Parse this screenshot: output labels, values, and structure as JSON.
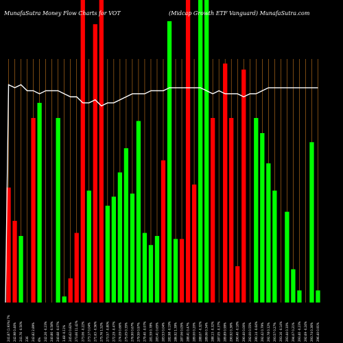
{
  "chart_data": {
    "type": "bar",
    "title_left": "MunafaSutra  Money Flow  Charts for VOT",
    "title_right": "(Midcap Growth ETF Vanguard) MunafaSutra.com",
    "background": "#000000",
    "up_color": "#00ff00",
    "down_color": "#ff0000",
    "line_color": "#ffffff",
    "grid_color": "#c8781e",
    "ylim": [
      0,
      100
    ],
    "categories": [
      "241.87 (1.93%) 7%",
      "242.98 0.46%",
      "241.76 -0.50%",
      "236",
      "242.82 2.89%",
      "6%",
      "242.26 -0.23%",
      "240.86 -0.58%",
      "240.68 -0.07%",
      "3.68 -0.11%",
      "245.62 0.82%",
      "273.66 11.42%",
      "273.06 -0.22%",
      "273.17 0.04%",
      "271.63 -0.56%",
      "275.76 1.52%",
      "273.57 -0.80%",
      "272.29 -0.47%",
      "274.09 0.66%",
      "275.05 0.35%",
      "276.90 0.67%",
      "279.59 0.97%",
      "279.40 -0.07%",
      "281.59 0.78%",
      "283.41 0.65%",
      "283.53 0.04%",
      "282.98 -0.19%",
      "286.92 1.39%",
      "287.06 0.05%",
      "288.41 0.47%",
      "289.00 0.20%",
      "288.07 -0.32%",
      "289.06 0.34%",
      "288.13 -0.32%",
      "287.05 -0.37%",
      "289.89 0.99%",
      "290.92 0.36%",
      "290.40 -0.18%",
      "290.40 0.00%",
      "292.00 0.55%",
      "290.14 -0.64%",
      "292.42 0.79%",
      "292.78 0.12%",
      "293.57 0.27%",
      "293.16 -0.14%",
      "293.44 0.10%",
      "294.07 0.21%",
      "293.40 -0.23%",
      "292.69 -0.24%",
      "293.74 0.36%",
      "296.40 0.91%"
    ],
    "series": [
      {
        "values": [
          38,
          27,
          22,
          0,
          61,
          66,
          0,
          0,
          61,
          2,
          8,
          23,
          100,
          37,
          92,
          100,
          32,
          35,
          43,
          51,
          36,
          60,
          23,
          19,
          22,
          47,
          93,
          21,
          21,
          100,
          39,
          100,
          100,
          61,
          0,
          79,
          61,
          12,
          77,
          0,
          61,
          56,
          46,
          37,
          0,
          30,
          11,
          4,
          0,
          53,
          4
        ],
        "directions": [
          "down",
          "down",
          "up",
          "down",
          "down",
          "up",
          "down",
          "down",
          "up",
          "up",
          "down",
          "down",
          "down",
          "up",
          "down",
          "down",
          "up",
          "up",
          "up",
          "up",
          "up",
          "up",
          "up",
          "up",
          "up",
          "down",
          "up",
          "up",
          "down",
          "down",
          "down",
          "up",
          "up",
          "down",
          "down",
          "down",
          "down",
          "down",
          "down",
          "down",
          "up",
          "up",
          "up",
          "up",
          "up",
          "up",
          "up",
          "up",
          "up",
          "up",
          "up"
        ]
      },
      {
        "type": "line",
        "values": [
          72,
          71,
          72,
          70,
          70,
          69,
          70,
          70,
          70,
          69,
          68,
          68,
          66,
          66,
          67,
          65,
          66,
          66,
          67,
          68,
          69,
          69,
          69,
          70,
          70,
          70,
          71,
          71,
          71,
          71,
          71,
          71,
          70,
          69,
          70,
          69,
          69,
          69,
          68,
          69,
          69,
          70,
          71,
          71,
          71,
          71,
          71,
          71,
          71,
          71,
          71
        ]
      }
    ]
  }
}
